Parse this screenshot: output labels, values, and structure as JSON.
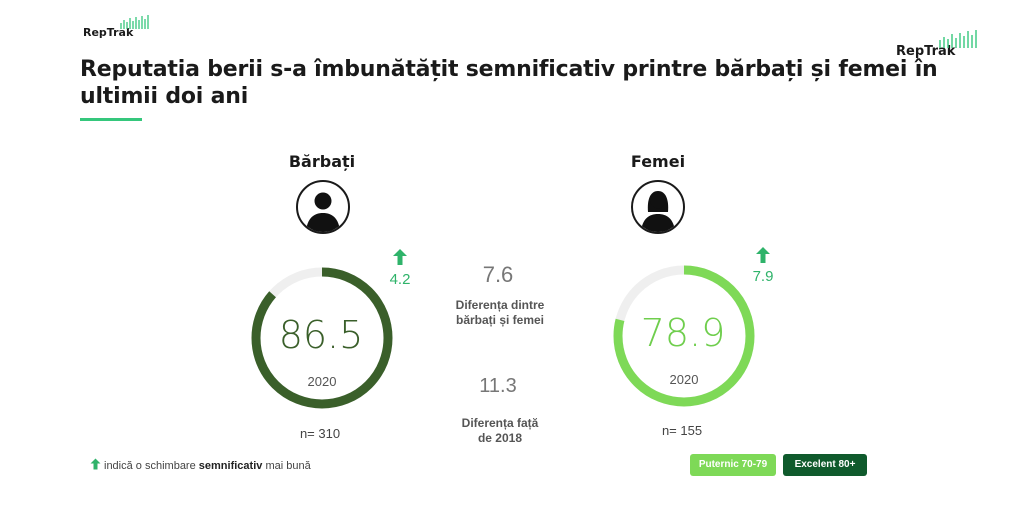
{
  "brand": {
    "logo_text": "RepTrak"
  },
  "title": "Reputatia berii s-a îmbunătățit semnificativ printre bărbați și femei în ultimii doi ani",
  "groups": [
    {
      "label": "Bărbați",
      "score": "86.5",
      "year": "2020",
      "change": "4.2",
      "n": "n= 310",
      "fill_color": "#3a5f2a"
    },
    {
      "label": "Femei",
      "score": "78.9",
      "year": "2020",
      "change": "7.9",
      "n": "n= 155",
      "fill_color": "#7ed957"
    }
  ],
  "middle": {
    "diff_gender_value": "7.6",
    "diff_gender_label_1": "Diferența dintre",
    "diff_gender_label_2": "bărbați și femei",
    "diff_year_value": "11.3",
    "diff_year_label_1": "Diferența față",
    "diff_year_label_2": "de 2018"
  },
  "legend": {
    "note_prefix": "indică o schimbare",
    "note_bold": "semnificativ",
    "note_suffix": "mai bună",
    "badge_strong": "Puternic 70-79",
    "badge_excellent": "Excelent 80+",
    "strong_color": "#7ed957",
    "excellent_color": "#0f5a2c"
  },
  "chart_data": {
    "type": "gauge",
    "scale_max": 100,
    "series": [
      {
        "name": "Bărbați",
        "value": 86.5
      },
      {
        "name": "Femei",
        "value": 78.9
      }
    ]
  }
}
